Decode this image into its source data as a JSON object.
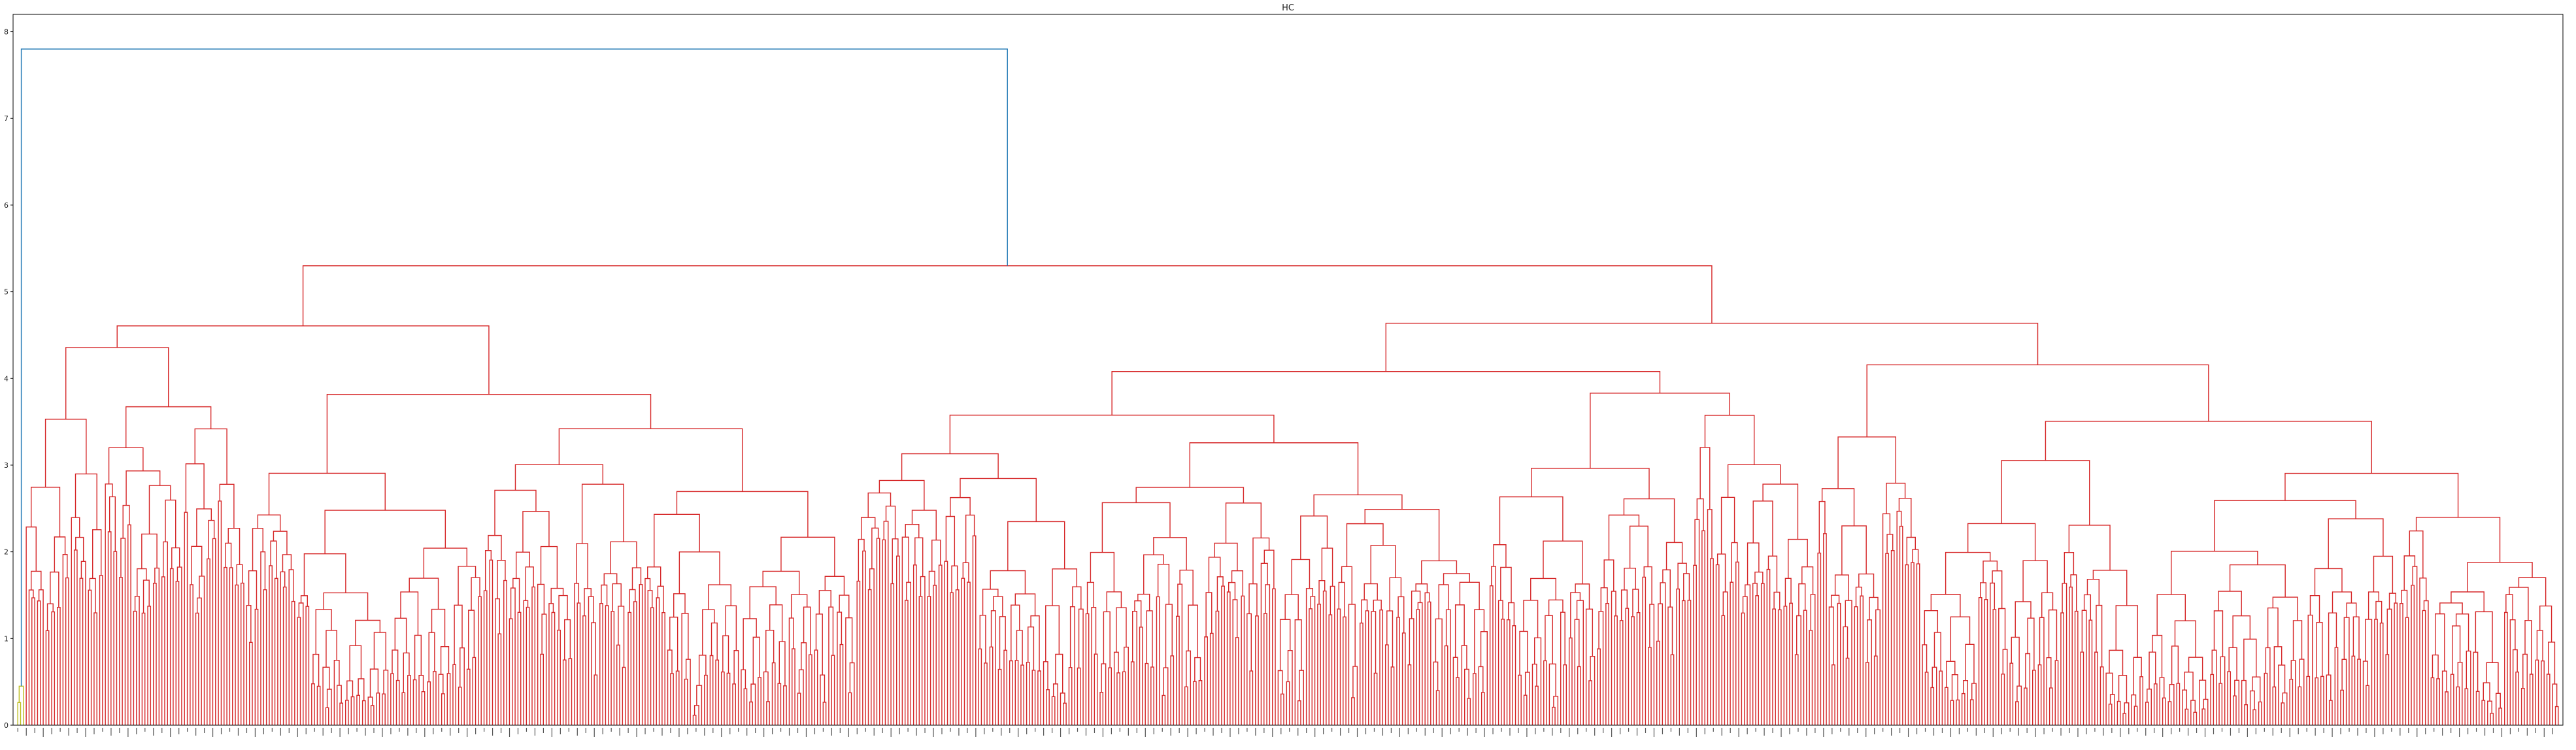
{
  "chart_data": {
    "type": "dendrogram",
    "title": "HC",
    "xlabel": "",
    "ylabel": "",
    "ylim": [
      0,
      8.2
    ],
    "yticks": [
      0,
      1,
      2,
      3,
      4,
      5,
      6,
      7,
      8
    ],
    "grid": false,
    "legend": "none",
    "colors": {
      "root_link": "#1f77b4",
      "small_cluster": "#bcbd22",
      "large_cluster": "#d62728",
      "axis": "#000000",
      "background": "#ffffff"
    },
    "root_merge_height": 7.8,
    "clusters": [
      {
        "color": "#bcbd22",
        "leaf_fraction": 0.003,
        "merge_height": 0.45
      },
      {
        "color": "#d62728",
        "leaf_fraction": 0.997,
        "merge_height": 5.3
      }
    ],
    "major_merge_heights": [
      7.8,
      5.3,
      5.2,
      5.1,
      5.0,
      4.95,
      4.5,
      4.4,
      4.2,
      4.0,
      3.85,
      3.6,
      3.55,
      3.3,
      3.0,
      2.9,
      2.8,
      2.75,
      2.7,
      2.6,
      2.55,
      2.5,
      2.4,
      2.3,
      2.2,
      2.1,
      2.0,
      1.95,
      1.9,
      1.85,
      1.8,
      1.7,
      1.6,
      1.5,
      1.4,
      1.3,
      1.25,
      1.2,
      1.1,
      1.05,
      1.0,
      0.7,
      0.65,
      0.6,
      0.45
    ]
  }
}
